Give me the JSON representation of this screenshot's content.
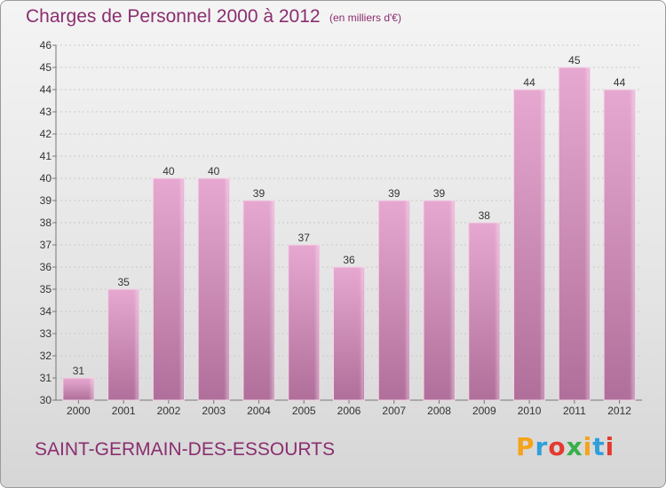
{
  "header": {
    "title": "Charges de Personnel 2000 à 2012",
    "subtitle": "(en milliers d'€)"
  },
  "footer": {
    "city": "SAINT-GERMAIN-DES-ESSOURTS",
    "logo_text": "Proxiti",
    "logo_colors": [
      "#f5a31a",
      "#2f9fdc",
      "#e23b2f",
      "#36b04a",
      "#f5a31a",
      "#2f9fdc",
      "#e23b2f"
    ]
  },
  "colors": {
    "bar_top": "#e6a8d0",
    "bar_bottom": "#b06f9a",
    "axis_text": "#333333",
    "grid": "#c9c9c9"
  },
  "chart_data": {
    "type": "bar",
    "title": "Charges de Personnel 2000 à 2012",
    "subtitle": "(en milliers d'€)",
    "categories": [
      "2000",
      "2001",
      "2002",
      "2003",
      "2004",
      "2005",
      "2006",
      "2007",
      "2008",
      "2009",
      "2010",
      "2011",
      "2012"
    ],
    "values": [
      31,
      35,
      40,
      40,
      39,
      37,
      36,
      39,
      39,
      38,
      44,
      45,
      44
    ],
    "ylim": [
      30,
      46
    ],
    "yticks": [
      30,
      31,
      32,
      33,
      34,
      35,
      36,
      37,
      38,
      39,
      40,
      41,
      42,
      43,
      44,
      45,
      46
    ],
    "grid": true,
    "xlabel": "",
    "ylabel": ""
  }
}
